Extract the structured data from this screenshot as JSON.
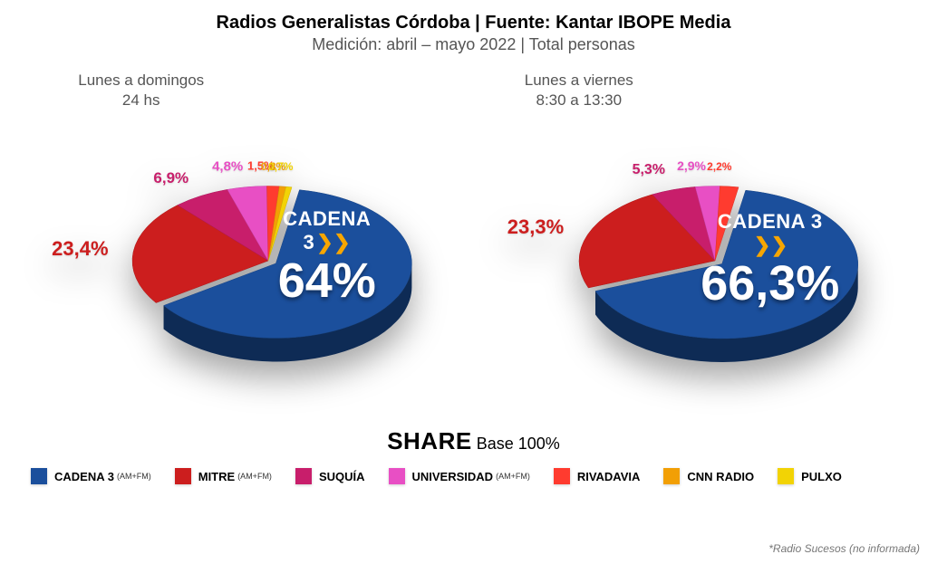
{
  "header": {
    "title": "Radios Generalistas Córdoba | Fuente: Kantar IBOPE Media",
    "subtitle": "Medición: abril – mayo 2022 | Total personas"
  },
  "share": {
    "word": "SHARE",
    "base": "Base 100%"
  },
  "footnote": "*Radio Sucesos (no informada)",
  "brand_name": "CADENA 3",
  "brand_icon": "❯❯",
  "charts": [
    {
      "caption_line1": "Lunes a domingos",
      "caption_line2": "24 hs",
      "center_pct": "64%",
      "explode_main": 10,
      "slices": [
        {
          "label": "64%",
          "value": 64.0,
          "color": "#1b4f9c",
          "is_main": true,
          "hide_label": true
        },
        {
          "label": "23,4%",
          "value": 23.4,
          "color": "#cc1e1e",
          "fontsize": 22
        },
        {
          "label": "6,9%",
          "value": 6.9,
          "color": "#c81e6b",
          "fontsize": 17
        },
        {
          "label": "4,8%",
          "value": 4.8,
          "color": "#e84fc4",
          "fontsize": 15
        },
        {
          "label": "1,5%",
          "value": 1.5,
          "color": "#ff3b2f",
          "fontsize": 13
        },
        {
          "label": "0,8%",
          "value": 0.8,
          "color": "#f29f05",
          "fontsize": 12
        },
        {
          "label": "0,7%",
          "value": 0.7,
          "color": "#f2d305",
          "fontsize": 12
        }
      ]
    },
    {
      "caption_line1": "Lunes a viernes",
      "caption_line2": "8:30 a 13:30",
      "center_pct": "66,3%",
      "explode_main": 10,
      "slices": [
        {
          "label": "66,3%",
          "value": 66.3,
          "color": "#1b4f9c",
          "is_main": true,
          "hide_label": true
        },
        {
          "label": "23,3%",
          "value": 23.3,
          "color": "#cc1e1e",
          "fontsize": 22
        },
        {
          "label": "5,3%",
          "value": 5.3,
          "color": "#c81e6b",
          "fontsize": 16
        },
        {
          "label": "2,9%",
          "value": 2.9,
          "color": "#e84fc4",
          "fontsize": 14
        },
        {
          "label": "2,2%",
          "value": 2.2,
          "color": "#ff3b2f",
          "fontsize": 12
        }
      ]
    }
  ],
  "legend": [
    {
      "label": "CADENA 3",
      "sub": "(AM+FM)",
      "color": "#1b4f9c"
    },
    {
      "label": "MITRE",
      "sub": "(AM+FM)",
      "color": "#cc1e1e"
    },
    {
      "label": "SUQUÍA",
      "sub": "",
      "color": "#c81e6b"
    },
    {
      "label": "UNIVERSIDAD",
      "sub": "(AM+FM)",
      "color": "#e84fc4"
    },
    {
      "label": "RIVADAVIA",
      "sub": "",
      "color": "#ff3b2f"
    },
    {
      "label": "CNN RADIO",
      "sub": "",
      "color": "#f29f05"
    },
    {
      "label": "PULXO",
      "sub": "",
      "color": "#f2d305"
    }
  ],
  "style": {
    "pie_radius": 150,
    "pie_depth": 26,
    "pie_tilt": 0.55,
    "label_offset": 28,
    "center_label_dx": 50,
    "center_label_dy": -26
  }
}
